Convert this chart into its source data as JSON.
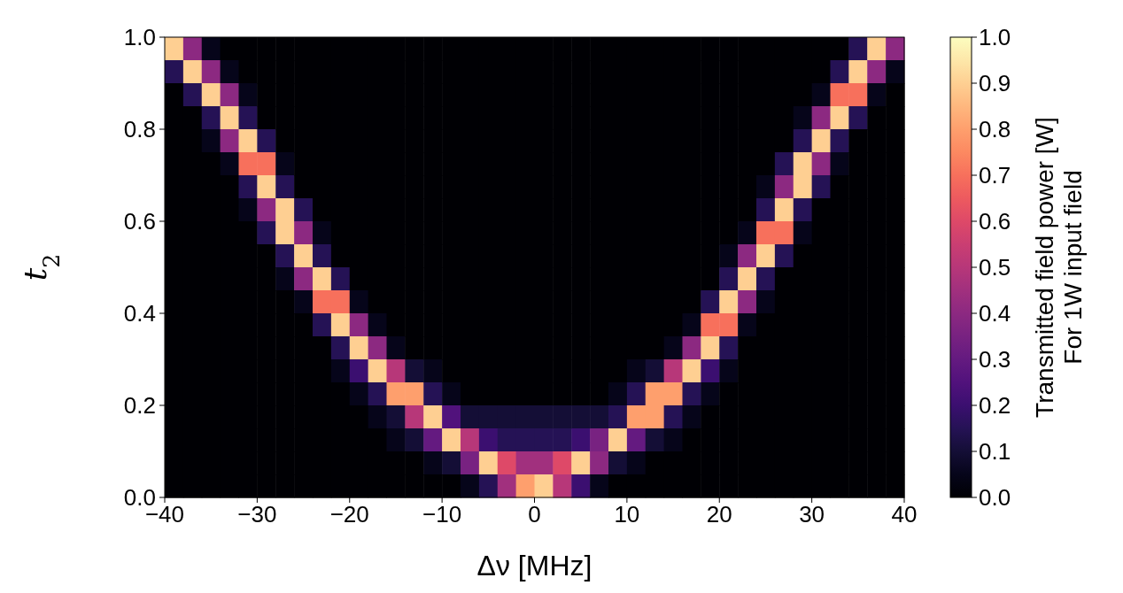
{
  "chart_data": {
    "type": "heatmap",
    "xlabel": "Δν [MHz]",
    "ylabel": "t$_{2}$",
    "clabel": "Transmitted field power [W]\nFor 1W input field",
    "xlim": [
      -40,
      40
    ],
    "xticks": [
      -40,
      -30,
      -20,
      -10,
      0,
      10,
      20,
      30,
      40
    ],
    "ylim": [
      0,
      1
    ],
    "yticks": [
      {
        "value": 0,
        "label": "0.0"
      },
      0.2,
      0.4,
      0.6,
      0.8,
      {
        "value": 1,
        "label": "1.0"
      }
    ],
    "clim": [
      0,
      1
    ],
    "cticks": [
      {
        "value": 0,
        "label": "0.0"
      },
      0.1,
      0.2,
      0.3,
      0.4,
      0.5,
      0.6,
      0.7,
      0.8,
      0.9,
      {
        "value": 1,
        "label": "1.0"
      }
    ],
    "cells": [
      [
        0.9,
        0.4,
        0.05,
        0,
        0,
        0,
        0,
        0,
        0,
        0,
        0,
        0,
        0,
        0,
        0,
        0,
        0,
        0,
        0,
        0,
        0,
        0,
        0,
        0,
        0,
        0,
        0,
        0,
        0,
        0,
        0,
        0,
        0,
        0,
        0,
        0,
        0,
        0.15,
        0.9,
        0.4
      ],
      [
        0.15,
        0.9,
        0.4,
        0.05,
        0,
        0,
        0,
        0,
        0,
        0,
        0,
        0,
        0,
        0,
        0,
        0,
        0,
        0,
        0,
        0,
        0,
        0,
        0,
        0,
        0,
        0,
        0,
        0,
        0,
        0,
        0,
        0,
        0,
        0,
        0,
        0,
        0.15,
        0.9,
        0.4,
        0.05
      ],
      [
        0,
        0.15,
        0.9,
        0.4,
        0.05,
        0,
        0,
        0,
        0,
        0,
        0,
        0,
        0,
        0,
        0,
        0,
        0,
        0,
        0,
        0,
        0,
        0,
        0,
        0,
        0,
        0,
        0,
        0,
        0,
        0,
        0,
        0,
        0,
        0,
        0,
        0.05,
        0.7,
        0.7,
        0.05,
        0
      ],
      [
        0,
        0,
        0.15,
        0.9,
        0.15,
        0,
        0,
        0,
        0,
        0,
        0,
        0,
        0,
        0,
        0,
        0,
        0,
        0,
        0,
        0,
        0,
        0,
        0,
        0,
        0,
        0,
        0,
        0,
        0,
        0,
        0,
        0,
        0,
        0,
        0.05,
        0.4,
        0.9,
        0.15,
        0,
        0
      ],
      [
        0,
        0,
        0.05,
        0.4,
        0.9,
        0.15,
        0,
        0,
        0,
        0,
        0,
        0,
        0,
        0,
        0,
        0,
        0,
        0,
        0,
        0,
        0,
        0,
        0,
        0,
        0,
        0,
        0,
        0,
        0,
        0,
        0,
        0,
        0,
        0,
        0.15,
        0.9,
        0.15,
        0,
        0,
        0
      ],
      [
        0,
        0,
        0,
        0.05,
        0.7,
        0.7,
        0.05,
        0,
        0,
        0,
        0,
        0,
        0,
        0,
        0,
        0,
        0,
        0,
        0,
        0,
        0,
        0,
        0,
        0,
        0,
        0,
        0,
        0,
        0,
        0,
        0,
        0,
        0,
        0.15,
        0.9,
        0.4,
        0.05,
        0,
        0,
        0
      ],
      [
        0,
        0,
        0,
        0,
        0.15,
        0.9,
        0.15,
        0,
        0,
        0,
        0,
        0,
        0,
        0,
        0,
        0,
        0,
        0,
        0,
        0,
        0,
        0,
        0,
        0,
        0,
        0,
        0,
        0,
        0,
        0,
        0,
        0,
        0.05,
        0.4,
        0.9,
        0.15,
        0,
        0,
        0,
        0
      ],
      [
        0,
        0,
        0,
        0,
        0.05,
        0.4,
        0.9,
        0.15,
        0,
        0,
        0,
        0,
        0,
        0,
        0,
        0,
        0,
        0,
        0,
        0,
        0,
        0,
        0,
        0,
        0,
        0,
        0,
        0,
        0,
        0,
        0,
        0,
        0.15,
        0.9,
        0.15,
        0,
        0,
        0,
        0,
        0
      ],
      [
        0,
        0,
        0,
        0,
        0,
        0.15,
        0.9,
        0.4,
        0.05,
        0,
        0,
        0,
        0,
        0,
        0,
        0,
        0,
        0,
        0,
        0,
        0,
        0,
        0,
        0,
        0,
        0,
        0,
        0,
        0,
        0,
        0,
        0.05,
        0.7,
        0.7,
        0.05,
        0,
        0,
        0,
        0,
        0
      ],
      [
        0,
        0,
        0,
        0,
        0,
        0,
        0.15,
        0.9,
        0.15,
        0,
        0,
        0,
        0,
        0,
        0,
        0,
        0,
        0,
        0,
        0,
        0,
        0,
        0,
        0,
        0,
        0,
        0,
        0,
        0,
        0,
        0.05,
        0.4,
        0.9,
        0.15,
        0,
        0,
        0,
        0,
        0,
        0
      ],
      [
        0,
        0,
        0,
        0,
        0,
        0,
        0.05,
        0.4,
        0.9,
        0.15,
        0,
        0,
        0,
        0,
        0,
        0,
        0,
        0,
        0,
        0,
        0,
        0,
        0,
        0,
        0,
        0,
        0,
        0,
        0,
        0,
        0.15,
        0.9,
        0.15,
        0,
        0,
        0,
        0,
        0,
        0,
        0
      ],
      [
        0,
        0,
        0,
        0,
        0,
        0,
        0,
        0.05,
        0.7,
        0.7,
        0.05,
        0,
        0,
        0,
        0,
        0,
        0,
        0,
        0,
        0,
        0,
        0,
        0,
        0,
        0,
        0,
        0,
        0,
        0,
        0.15,
        0.9,
        0.4,
        0.05,
        0,
        0,
        0,
        0,
        0,
        0,
        0
      ],
      [
        0,
        0,
        0,
        0,
        0,
        0,
        0,
        0,
        0.15,
        0.9,
        0.4,
        0.05,
        0,
        0,
        0,
        0,
        0,
        0,
        0,
        0,
        0,
        0,
        0,
        0,
        0,
        0,
        0,
        0,
        0.05,
        0.7,
        0.7,
        0.05,
        0,
        0,
        0,
        0,
        0,
        0,
        0,
        0
      ],
      [
        0,
        0,
        0,
        0,
        0,
        0,
        0,
        0,
        0,
        0.15,
        0.9,
        0.4,
        0.05,
        0,
        0,
        0,
        0,
        0,
        0,
        0,
        0,
        0,
        0,
        0,
        0,
        0,
        0,
        0.05,
        0.4,
        0.9,
        0.15,
        0,
        0,
        0,
        0,
        0,
        0,
        0,
        0,
        0
      ],
      [
        0,
        0,
        0,
        0,
        0,
        0,
        0,
        0,
        0,
        0.05,
        0.2,
        0.9,
        0.5,
        0.1,
        0.05,
        0,
        0,
        0,
        0,
        0,
        0,
        0,
        0,
        0,
        0,
        0.05,
        0.1,
        0.5,
        0.9,
        0.2,
        0.05,
        0,
        0,
        0,
        0,
        0,
        0,
        0,
        0,
        0
      ],
      [
        0,
        0,
        0,
        0,
        0,
        0,
        0,
        0,
        0,
        0,
        0.05,
        0.15,
        0.8,
        0.8,
        0.15,
        0.05,
        0,
        0,
        0,
        0,
        0,
        0,
        0,
        0,
        0.05,
        0.15,
        0.8,
        0.8,
        0.15,
        0.05,
        0,
        0,
        0,
        0,
        0,
        0,
        0,
        0,
        0,
        0
      ],
      [
        0,
        0,
        0,
        0,
        0,
        0,
        0,
        0,
        0,
        0,
        0,
        0.05,
        0.1,
        0.5,
        0.9,
        0.25,
        0.1,
        0.1,
        0.1,
        0.1,
        0.1,
        0.1,
        0.1,
        0.1,
        0.15,
        0.8,
        0.8,
        0.15,
        0.05,
        0,
        0,
        0,
        0,
        0,
        0,
        0,
        0,
        0,
        0,
        0
      ],
      [
        0,
        0,
        0,
        0,
        0,
        0,
        0,
        0,
        0,
        0,
        0,
        0,
        0.05,
        0.1,
        0.3,
        0.9,
        0.5,
        0.2,
        0.15,
        0.15,
        0.15,
        0.15,
        0.2,
        0.35,
        0.9,
        0.3,
        0.1,
        0.05,
        0,
        0,
        0,
        0,
        0,
        0,
        0,
        0,
        0,
        0,
        0,
        0
      ],
      [
        0,
        0,
        0,
        0,
        0,
        0,
        0,
        0,
        0,
        0,
        0,
        0,
        0,
        0,
        0.05,
        0.1,
        0.35,
        0.9,
        0.6,
        0.45,
        0.45,
        0.6,
        0.9,
        0.4,
        0.1,
        0.05,
        0,
        0,
        0,
        0,
        0,
        0,
        0,
        0,
        0,
        0,
        0,
        0,
        0,
        0
      ],
      [
        0,
        0,
        0,
        0,
        0,
        0,
        0,
        0,
        0,
        0,
        0,
        0,
        0,
        0,
        0,
        0,
        0.05,
        0.15,
        0.45,
        0.8,
        0.9,
        0.5,
        0.2,
        0.05,
        0,
        0,
        0,
        0,
        0,
        0,
        0,
        0,
        0,
        0,
        0,
        0,
        0,
        0,
        0,
        0
      ]
    ]
  }
}
